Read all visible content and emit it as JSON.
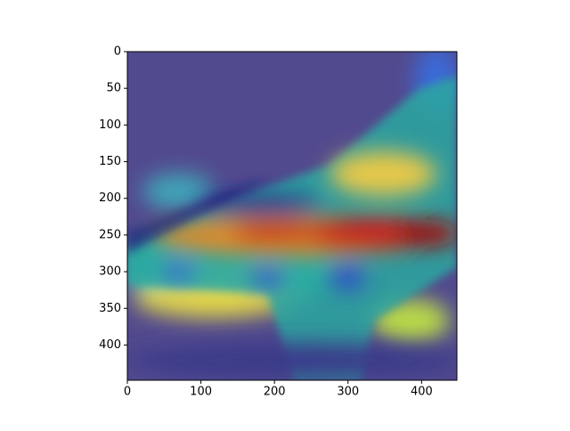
{
  "chart_data": {
    "type": "image",
    "xlim": [
      0,
      448
    ],
    "ylim": [
      448,
      0
    ],
    "xticks": [
      0,
      100,
      200,
      300,
      400
    ],
    "yticks": [
      0,
      50,
      100,
      150,
      200,
      250,
      300,
      350,
      400
    ]
  }
}
